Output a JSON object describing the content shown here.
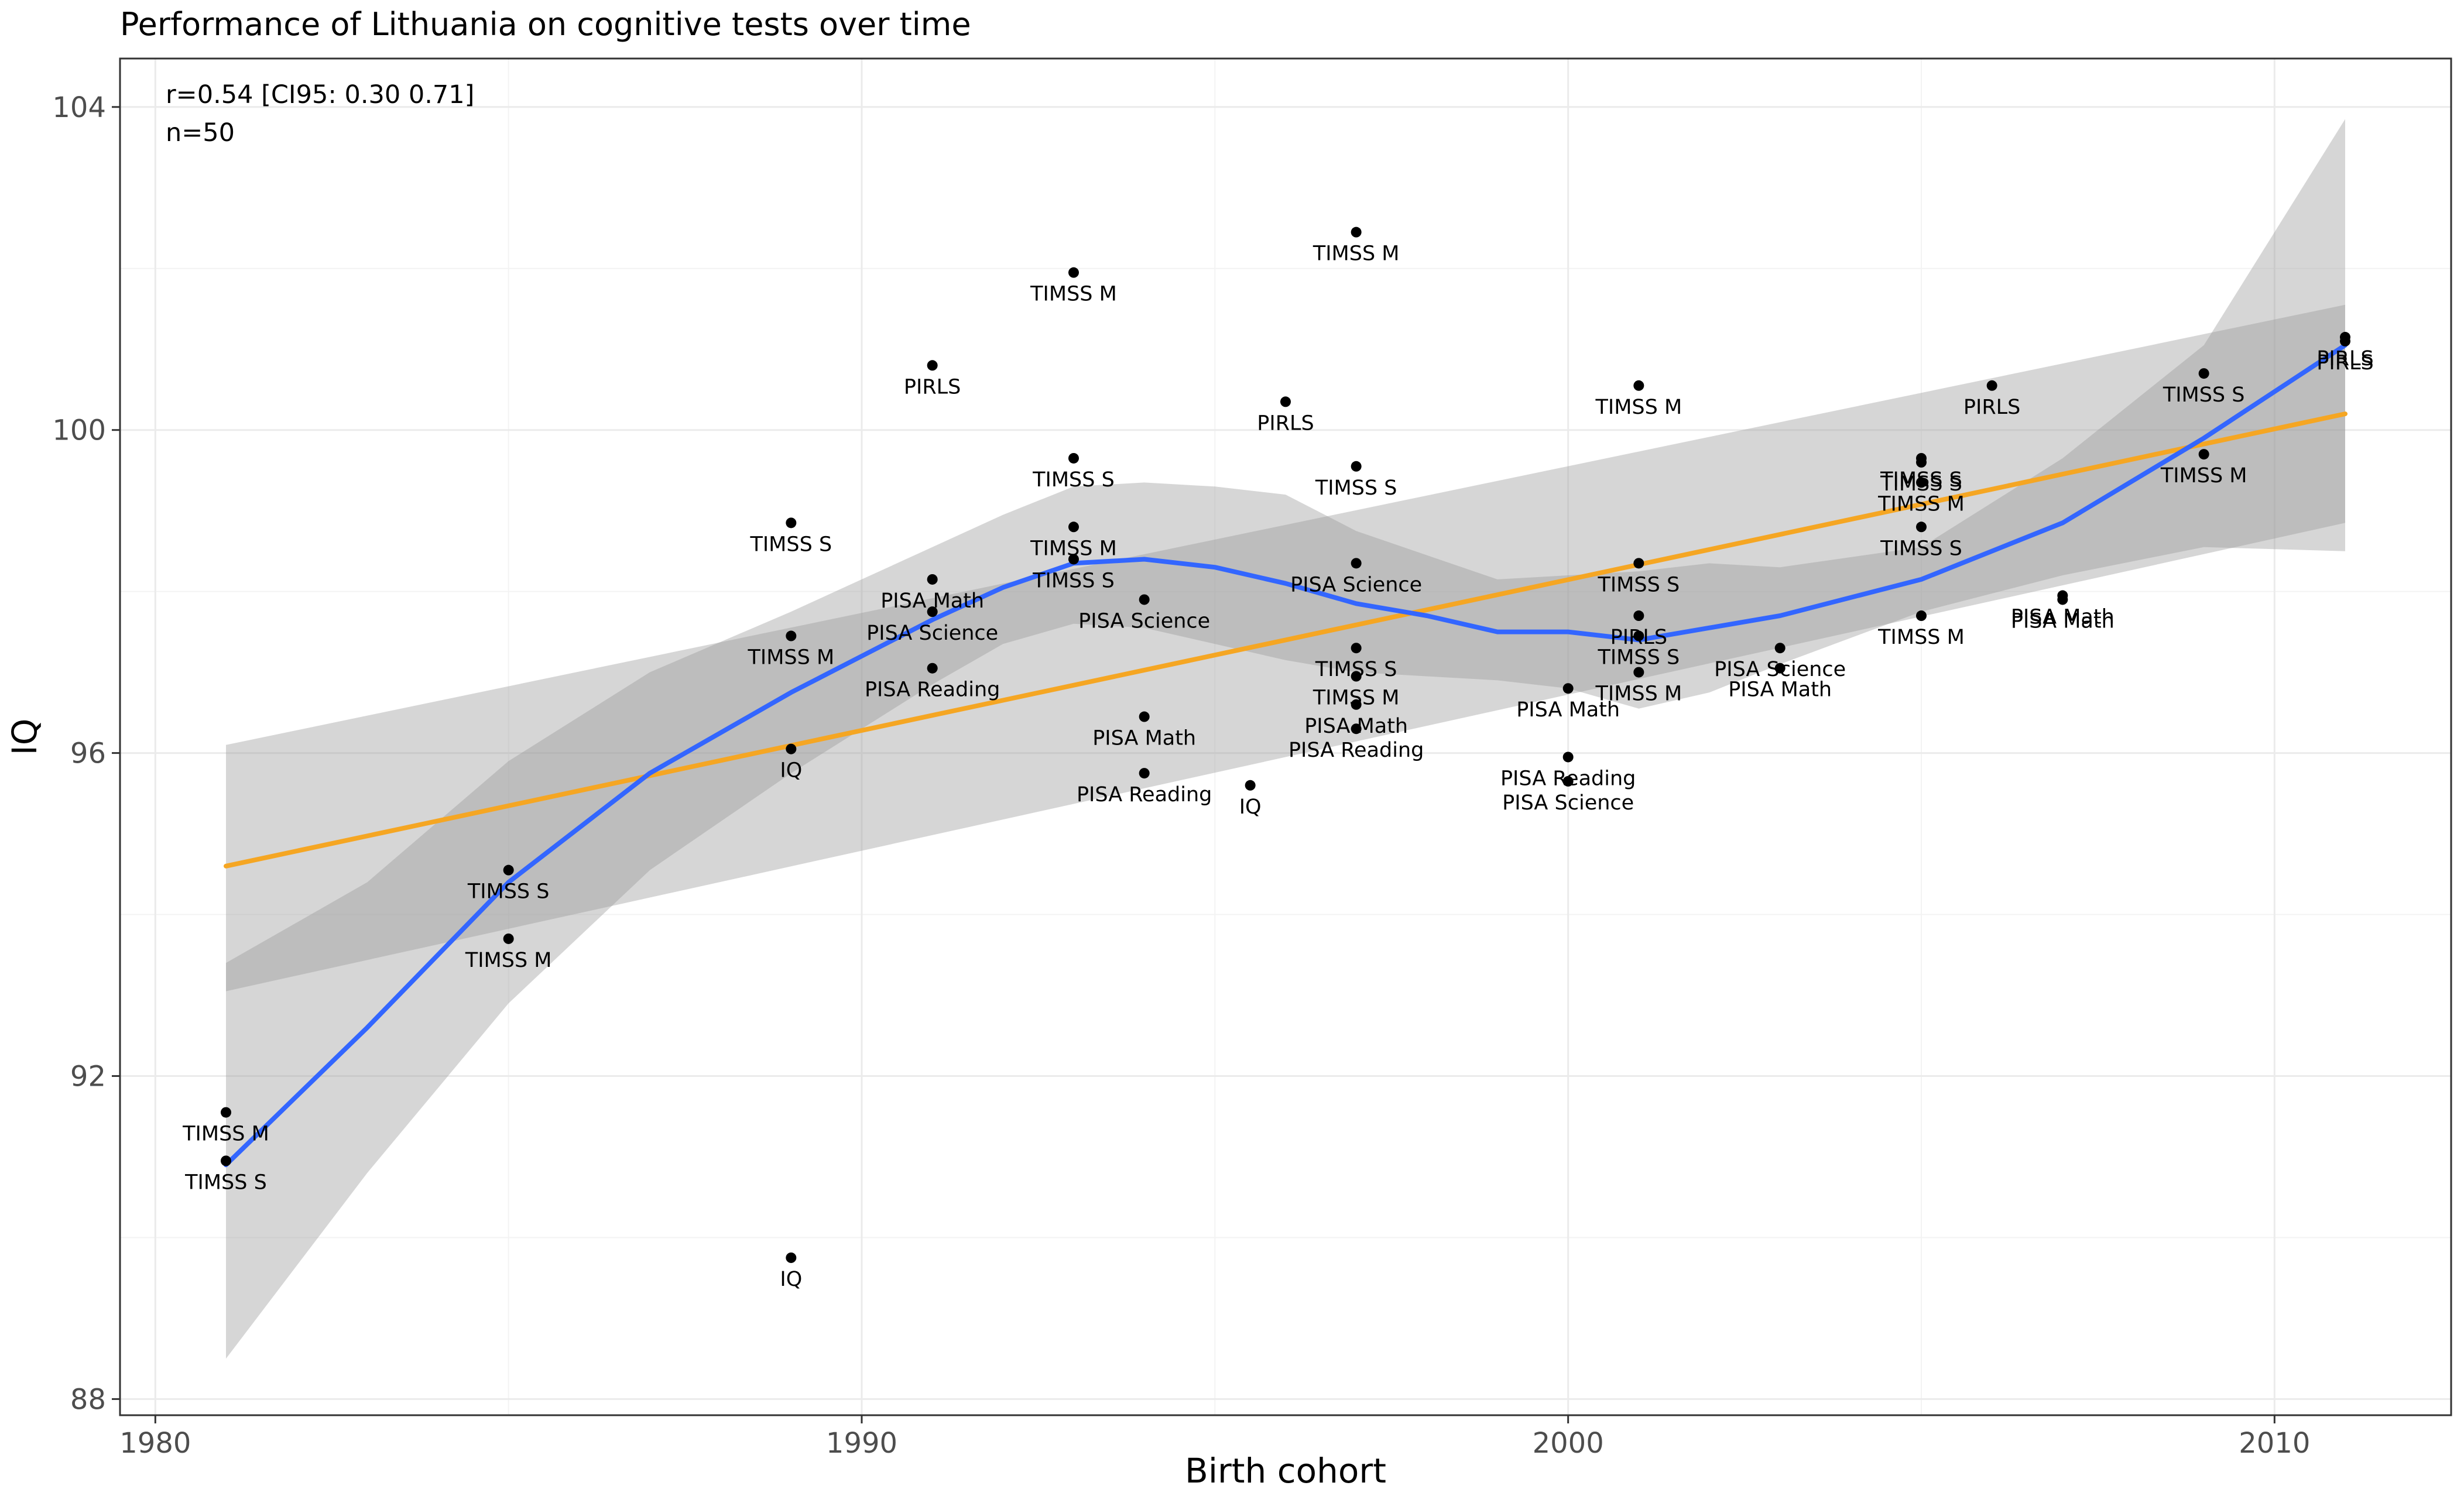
{
  "chart_data": {
    "type": "scatter",
    "title": "Performance of Lithuania on cognitive tests over time",
    "xlabel": "Birth cohort",
    "ylabel": "IQ",
    "xlim": [
      1979.5,
      2012.5
    ],
    "ylim": [
      87.8,
      104.6
    ],
    "x_ticks": [
      1980,
      1990,
      2000,
      2010
    ],
    "y_ticks": [
      88,
      92,
      96,
      100,
      104
    ],
    "grid": true,
    "annotations": [
      "r=0.54 [CI95: 0.30 0.71]",
      "n=50"
    ],
    "colors": {
      "point": "#000000",
      "linear_fit": "#F5A623",
      "loess_fit": "#3366FF",
      "ribbon": "#999999",
      "grid_major": "#ebebeb",
      "panel_border": "#333333"
    },
    "points": [
      {
        "x": 1981,
        "y": 91.55,
        "label": "TIMSS M"
      },
      {
        "x": 1981,
        "y": 90.95,
        "label": "TIMSS S"
      },
      {
        "x": 1985,
        "y": 94.55,
        "label": "TIMSS S"
      },
      {
        "x": 1985,
        "y": 93.7,
        "label": "TIMSS M"
      },
      {
        "x": 1989,
        "y": 98.85,
        "label": "TIMSS S"
      },
      {
        "x": 1989,
        "y": 97.45,
        "label": "TIMSS M"
      },
      {
        "x": 1989,
        "y": 96.05,
        "label": "IQ"
      },
      {
        "x": 1989,
        "y": 89.75,
        "label": "IQ"
      },
      {
        "x": 1991,
        "y": 100.8,
        "label": "PIRLS"
      },
      {
        "x": 1991,
        "y": 98.15,
        "label": "PISA Math"
      },
      {
        "x": 1991,
        "y": 97.75,
        "label": "PISA Science"
      },
      {
        "x": 1991,
        "y": 97.05,
        "label": "PISA Reading"
      },
      {
        "x": 1993,
        "y": 101.95,
        "label": "TIMSS M"
      },
      {
        "x": 1993,
        "y": 99.65,
        "label": "TIMSS S"
      },
      {
        "x": 1993,
        "y": 98.8,
        "label": "TIMSS M"
      },
      {
        "x": 1993,
        "y": 98.4,
        "label": "TIMSS S"
      },
      {
        "x": 1994,
        "y": 97.9,
        "label": "PISA Science"
      },
      {
        "x": 1994,
        "y": 96.45,
        "label": "PISA Math"
      },
      {
        "x": 1994,
        "y": 95.75,
        "label": "PISA Reading"
      },
      {
        "x": 1995.5,
        "y": 95.6,
        "label": "IQ"
      },
      {
        "x": 1996,
        "y": 100.35,
        "label": "PIRLS"
      },
      {
        "x": 1997,
        "y": 102.45,
        "label": "TIMSS M"
      },
      {
        "x": 1997,
        "y": 99.55,
        "label": "TIMSS S"
      },
      {
        "x": 1997,
        "y": 98.35,
        "label": "PISA Science"
      },
      {
        "x": 1997,
        "y": 97.3,
        "label": "TIMSS S"
      },
      {
        "x": 1997,
        "y": 96.95,
        "label": "TIMSS M"
      },
      {
        "x": 1997,
        "y": 96.6,
        "label": "PISA Math"
      },
      {
        "x": 1997,
        "y": 96.3,
        "label": "PISA Reading"
      },
      {
        "x": 2000,
        "y": 96.8,
        "label": "PISA Math"
      },
      {
        "x": 2000,
        "y": 95.95,
        "label": "PISA Reading"
      },
      {
        "x": 2000,
        "y": 95.65,
        "label": "PISA Science"
      },
      {
        "x": 2001,
        "y": 100.55,
        "label": "TIMSS M"
      },
      {
        "x": 2001,
        "y": 98.35,
        "label": "TIMSS S"
      },
      {
        "x": 2001,
        "y": 97.7,
        "label": "PIRLS"
      },
      {
        "x": 2001,
        "y": 97.45,
        "label": "TIMSS S"
      },
      {
        "x": 2001,
        "y": 97.0,
        "label": "TIMSS M"
      },
      {
        "x": 2003,
        "y": 97.3,
        "label": "PISA Science"
      },
      {
        "x": 2003,
        "y": 97.05,
        "label": "PISA Math"
      },
      {
        "x": 2005,
        "y": 99.65,
        "label": "TIMSS S"
      },
      {
        "x": 2005,
        "y": 99.6,
        "label": "TIMSS S"
      },
      {
        "x": 2005,
        "y": 99.35,
        "label": "TIMSS M"
      },
      {
        "x": 2005,
        "y": 98.8,
        "label": "TIMSS S"
      },
      {
        "x": 2005,
        "y": 97.7,
        "label": "TIMSS M"
      },
      {
        "x": 2006,
        "y": 100.55,
        "label": "PIRLS"
      },
      {
        "x": 2007,
        "y": 97.95,
        "label": "PISA Math"
      },
      {
        "x": 2007,
        "y": 97.9,
        "label": "PISA Math"
      },
      {
        "x": 2009,
        "y": 100.7,
        "label": "TIMSS S"
      },
      {
        "x": 2009,
        "y": 99.7,
        "label": "TIMSS M"
      },
      {
        "x": 2011,
        "y": 101.15,
        "label": "PIRLS"
      },
      {
        "x": 2011,
        "y": 101.1,
        "label": "PIRLS"
      }
    ],
    "linear_fit": {
      "x": [
        1981,
        2011
      ],
      "y": [
        94.6,
        100.2
      ],
      "ci_lower": [
        93.05,
        98.85
      ],
      "ci_upper": [
        96.1,
        101.55
      ]
    },
    "loess_fit": {
      "x": [
        1981,
        1983,
        1985,
        1987,
        1989,
        1990,
        1991,
        1992,
        1993,
        1994,
        1995,
        1996,
        1997,
        1998,
        1999,
        2000,
        2001,
        2002,
        2003,
        2005,
        2007,
        2009,
        2011
      ],
      "y": [
        90.9,
        92.6,
        94.4,
        95.75,
        96.75,
        97.2,
        97.65,
        98.05,
        98.35,
        98.4,
        98.3,
        98.1,
        97.85,
        97.7,
        97.5,
        97.5,
        97.4,
        97.55,
        97.7,
        98.15,
        98.85,
        99.9,
        101.05
      ],
      "ci_lower": [
        88.5,
        90.8,
        92.9,
        94.55,
        95.75,
        96.3,
        96.85,
        97.35,
        97.6,
        97.55,
        97.35,
        97.15,
        97.0,
        96.95,
        96.9,
        96.8,
        96.55,
        96.75,
        97.1,
        97.75,
        98.2,
        98.55,
        98.5
      ],
      "ci_upper": [
        93.4,
        94.4,
        95.9,
        97.0,
        97.75,
        98.15,
        98.55,
        98.95,
        99.3,
        99.35,
        99.3,
        99.2,
        98.75,
        98.45,
        98.15,
        98.2,
        98.25,
        98.35,
        98.3,
        98.55,
        99.65,
        101.05,
        103.85
      ]
    }
  }
}
